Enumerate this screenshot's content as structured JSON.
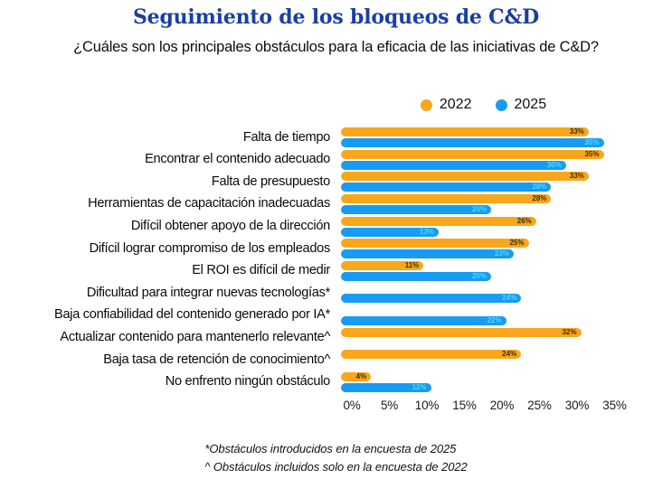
{
  "header": {
    "title": "Seguimiento de los bloqueos de C&D",
    "subtitle": "¿Cuáles son los principales obstáculos para la eficacia de las iniciativas de C&D?"
  },
  "theme": {
    "title_color": "#1A3FA3",
    "background_color": "#ffffff",
    "text_color": "#0d0d0d"
  },
  "chart_data": {
    "type": "bar",
    "orientation": "horizontal",
    "categories": [
      "Falta de tiempo",
      "Encontrar el contenido adecuado",
      "Falta de presupuesto",
      "Herramientas de capacitación inadecuadas",
      "Difícil obtener apoyo de la dirección",
      "Difícil lograr compromiso de los empleados",
      "El ROI es difícil de medir",
      "Dificultad para integrar nuevas tecnologías*",
      "Baja confiabilidad del contenido generado por IA*",
      "Actualizar contenido para mantenerlo relevante^",
      "Baja tasa de retención de conocimiento^",
      "No enfrento ningún obstáculo"
    ],
    "series": [
      {
        "name": "2022",
        "color": "#F9A61B",
        "value_label_color": "#3E2D00",
        "values": [
          33,
          35,
          33,
          28,
          26,
          25,
          11,
          null,
          null,
          32,
          24,
          4
        ]
      },
      {
        "name": "2025",
        "color": "#189BF2",
        "value_label_color": "#4FDCF8",
        "values": [
          35,
          30,
          28,
          20,
          13,
          23,
          20,
          24,
          22,
          null,
          null,
          12
        ]
      }
    ],
    "x_ticks": [
      "0%",
      "5%",
      "10%",
      "15%",
      "20%",
      "25%",
      "30%",
      "35%"
    ],
    "xlim": [
      0,
      35
    ],
    "value_suffix": "%",
    "grid": false,
    "legend_position": "top"
  },
  "footnotes": {
    "line1": "*Obstáculos introducidos en la encuesta de 2025",
    "line2": "^ Obstáculos incluidos solo en la encuesta de 2022"
  }
}
